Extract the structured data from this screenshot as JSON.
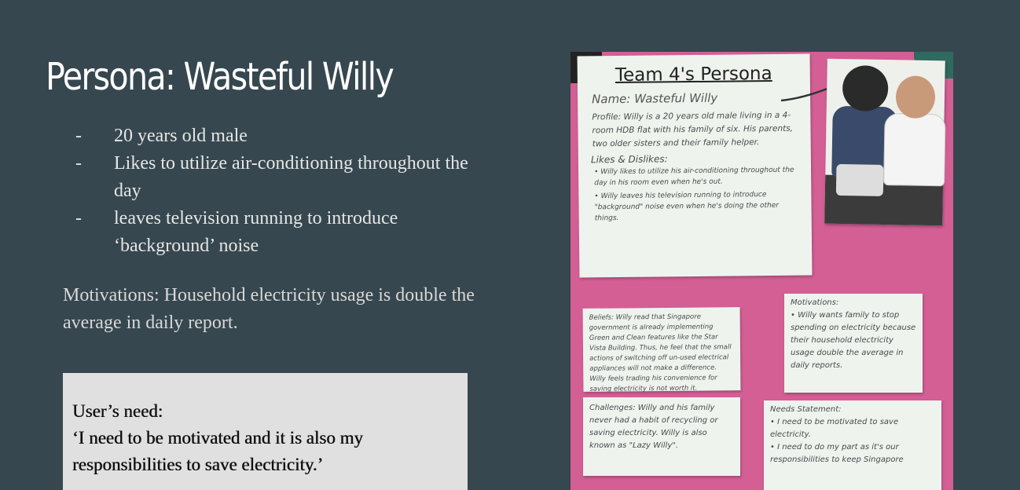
{
  "slide": {
    "title": "Persona: Wasteful Willy",
    "bullets": [
      {
        "dash": "-",
        "text": "20 years old male"
      },
      {
        "dash": "-",
        "text": "Likes to utilize air-conditioning throughout the day"
      },
      {
        "dash": "-",
        "text": "leaves television running to introduce ‘background’ noise"
      }
    ],
    "motivations": "Motivations: Household electricity usage is double the average in daily report.",
    "need_label": "User’s need:",
    "need_text": "‘I need to be motivated and it is also my responsibilities to save electricity.’"
  },
  "photo": {
    "heading": "Team 4's Persona",
    "name_line": "Name: Wasteful Willy",
    "profile": "Profile: Willy is a 20 years old male living in a 4-room HDB flat with his family of six. His parents, two older sisters and their family helper.",
    "likes_heading": "Likes & Dislikes:",
    "likes": [
      "• Willy likes to utilize his air-conditioning throughout the day in his room even when he's out.",
      "• Willy leaves his television running to introduce \"background\" noise even when he's doing the other things."
    ],
    "beliefs": "Beliefs: Willy read that Singapore government is already implementing Green and Clean features like the Star Vista Building. Thus, he feel that the small actions of switching off un-used electrical appliances will not make a difference. Willy feels trading his convenience for saving electricity is not worth it.",
    "challenges": "Challenges: Willy and his family never had a habit of recycling or saving electricity. Willy is also known as \"Lazy Willy\".",
    "motivations_heading": "Motivations:",
    "motivations": "• Willy wants family to stop spending on electricity because their household electricity usage double the average in daily reports.",
    "needs_heading": "Needs Statement:",
    "needs": [
      "• I need to be motivated to save electricity.",
      "• I need to do my part as it's our responsibilities to keep Singapore"
    ]
  },
  "colors": {
    "background": "#37474f",
    "title": "#ffffff",
    "body_text": "#e6e6e6",
    "need_box": "#e0e0e0",
    "board": "#d35f95"
  }
}
